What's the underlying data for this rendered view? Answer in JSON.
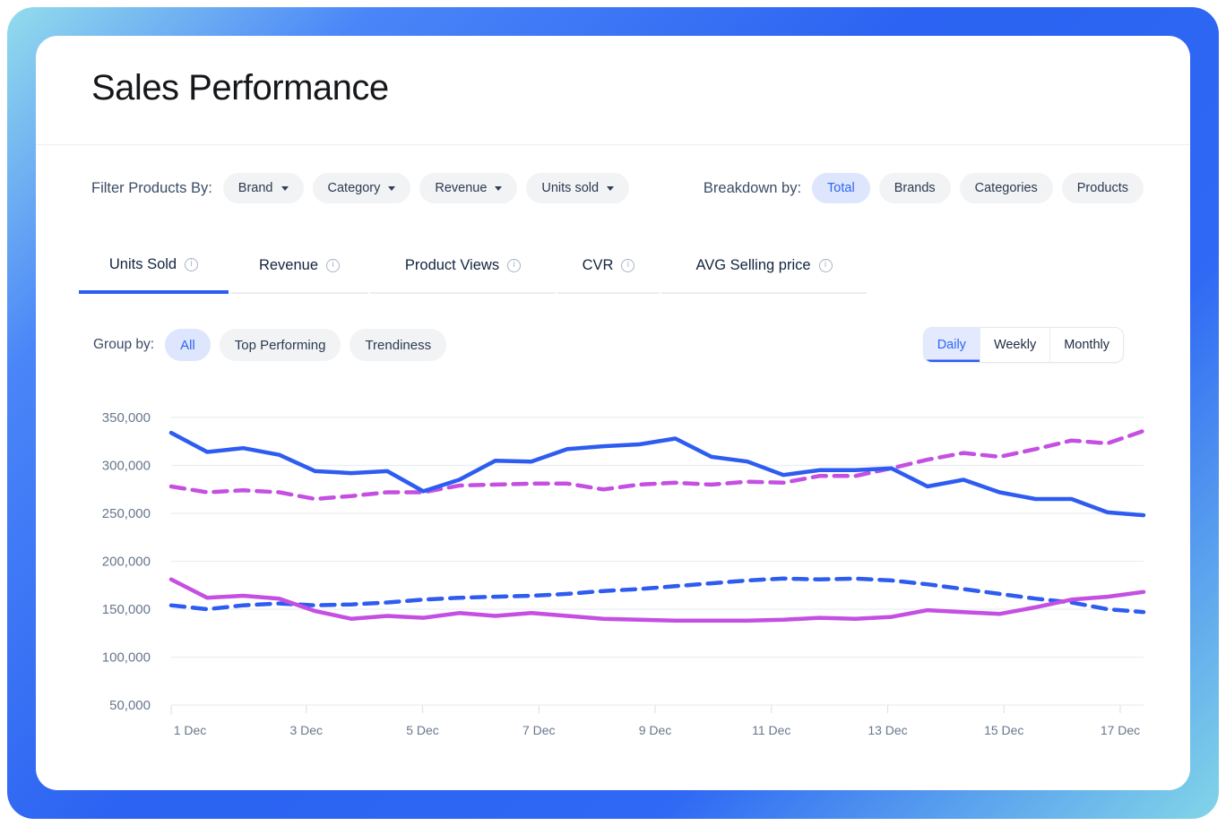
{
  "header": {
    "title": "Sales Performance"
  },
  "filter_bar": {
    "label": "Filter Products By:",
    "chips": [
      {
        "label": "Brand"
      },
      {
        "label": "Category"
      },
      {
        "label": "Revenue"
      },
      {
        "label": "Units sold"
      }
    ],
    "breakdown_label": "Breakdown by:",
    "breakdown_options": [
      {
        "label": "Total",
        "active": true
      },
      {
        "label": "Brands",
        "active": false
      },
      {
        "label": "Categories",
        "active": false
      },
      {
        "label": "Products",
        "active": false
      }
    ]
  },
  "metric_tabs": [
    {
      "label": "Units Sold",
      "active": true
    },
    {
      "label": "Revenue",
      "active": false
    },
    {
      "label": "Product Views",
      "active": false
    },
    {
      "label": "CVR",
      "active": false
    },
    {
      "label": "AVG Selling price",
      "active": false
    }
  ],
  "group_bar": {
    "label": "Group by:",
    "options": [
      {
        "label": "All",
        "active": true
      },
      {
        "label": "Top Performing",
        "active": false
      },
      {
        "label": "Trendiness",
        "active": false
      }
    ]
  },
  "period_toggle": {
    "options": [
      {
        "label": "Daily",
        "active": true
      },
      {
        "label": "Weekly",
        "active": false
      },
      {
        "label": "Monthly",
        "active": false
      }
    ]
  },
  "colors": {
    "accent_blue": "#2e5cf1",
    "accent_magenta": "#c44fe2",
    "active_pill_bg": "#dee6fd",
    "pill_bg": "#f2f3f5",
    "grid_line": "#ebeef2",
    "axis_text": "#68778c"
  },
  "chart_data": {
    "type": "line",
    "title": "",
    "xlabel": "",
    "ylabel": "",
    "x_tick_labels": [
      "1 Dec",
      "3 Dec",
      "5 Dec",
      "7 Dec",
      "9 Dec",
      "11 Dec",
      "13 Dec",
      "15 Dec",
      "17 Dec"
    ],
    "y_ticks": [
      350000,
      300000,
      250000,
      200000,
      150000,
      100000,
      50000
    ],
    "y_tick_labels": [
      "350,000",
      "300,000",
      "250,000",
      "200,000",
      "150,000",
      "100,000",
      "50,000"
    ],
    "ylim": [
      50000,
      362000
    ],
    "grid": true,
    "legend": "none",
    "x_note": "values sampled at 28 evenly spaced points spanning the 1 Dec - 17 Dec axis",
    "series": [
      {
        "name": "units-sold-dashed-blue",
        "style": "dashed",
        "color": "#2e5cf1",
        "values": [
          154000,
          150000,
          154000,
          156000,
          154000,
          155000,
          157000,
          160000,
          162000,
          163000,
          164000,
          166000,
          169000,
          171000,
          174000,
          177000,
          180000,
          182000,
          181000,
          182000,
          180000,
          176000,
          171000,
          166000,
          161000,
          157000,
          150000,
          147000
        ]
      },
      {
        "name": "units-sold-dashed-magenta",
        "style": "dashed",
        "color": "#c44fe2",
        "values": [
          278000,
          272000,
          274000,
          272000,
          265000,
          268000,
          272000,
          272000,
          279000,
          280000,
          281000,
          281000,
          275000,
          280000,
          282000,
          280000,
          283000,
          282000,
          289000,
          289000,
          297000,
          306000,
          313000,
          309000,
          317000,
          326000,
          323000,
          336000
        ]
      },
      {
        "name": "units-sold-solid-blue",
        "style": "solid",
        "color": "#2e5cf1",
        "values": [
          334000,
          314000,
          318000,
          311000,
          294000,
          292000,
          294000,
          273000,
          285000,
          305000,
          304000,
          317000,
          320000,
          322000,
          328000,
          309000,
          304000,
          290000,
          295000,
          295000,
          297000,
          278000,
          285000,
          272000,
          265000,
          265000,
          251000,
          248000
        ]
      },
      {
        "name": "units-sold-solid-magenta",
        "style": "solid",
        "color": "#c44fe2",
        "values": [
          181000,
          162000,
          164000,
          161000,
          148000,
          140000,
          143000,
          141000,
          146000,
          143000,
          146000,
          143000,
          140000,
          139000,
          138000,
          138000,
          138000,
          139000,
          141000,
          140000,
          142000,
          149000,
          147000,
          145000,
          152000,
          160000,
          163000,
          168000
        ]
      }
    ]
  }
}
